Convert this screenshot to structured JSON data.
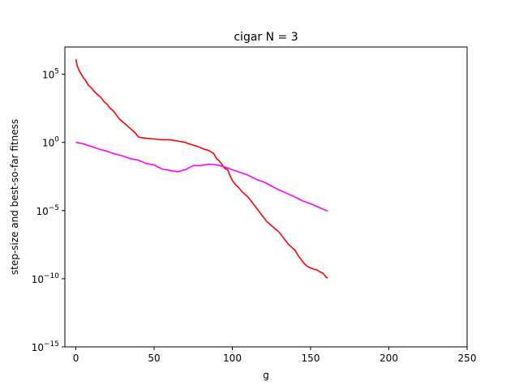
{
  "chart_data": {
    "type": "line",
    "title": "cigar N = 3",
    "xlabel": "g",
    "ylabel": "step-size and best-so-far fitness",
    "xlim": [
      -7,
      250
    ],
    "ylim_log10": [
      -15,
      7
    ],
    "y_scale": "log",
    "grid": false,
    "legend": "none",
    "x_ticks": [
      0,
      50,
      100,
      150,
      200,
      250
    ],
    "x_tick_labels": [
      "0",
      "50",
      "100",
      "150",
      "200",
      "250"
    ],
    "y_ticks_log10": [
      -15,
      -10,
      -5,
      0,
      5
    ],
    "y_tick_labels": [
      "10",
      "10",
      "10",
      "10",
      "10"
    ],
    "y_tick_exponents": [
      "−15",
      "−10",
      "−5",
      "0",
      "5"
    ],
    "series": [
      {
        "color": "#ff0000",
        "x": [
          0,
          1,
          2,
          3,
          4,
          5,
          6,
          7,
          8,
          9,
          10,
          12,
          14,
          16,
          18,
          20,
          22,
          24,
          26,
          28,
          30,
          32,
          34,
          36,
          38,
          40,
          42,
          45,
          50,
          55,
          60,
          65,
          70,
          72,
          75,
          78,
          80,
          82,
          85,
          88,
          90,
          92,
          95,
          97,
          98,
          100,
          102,
          104,
          106,
          108,
          110,
          112,
          114,
          116,
          118,
          120,
          122,
          124,
          126,
          128,
          130,
          132,
          134,
          136,
          138,
          140,
          142,
          144,
          146,
          148,
          150,
          152,
          154,
          156,
          158,
          160,
          161
        ],
        "log10_y": [
          6.1,
          5.6,
          5.3,
          5.1,
          4.9,
          4.7,
          4.6,
          4.4,
          4.2,
          4.1,
          4.0,
          3.7,
          3.5,
          3.3,
          3.0,
          2.8,
          2.5,
          2.3,
          2.0,
          1.7,
          1.5,
          1.3,
          1.1,
          0.9,
          0.7,
          0.4,
          0.35,
          0.3,
          0.25,
          0.2,
          0.2,
          0.1,
          0.0,
          -0.1,
          -0.2,
          -0.3,
          -0.4,
          -0.5,
          -0.6,
          -0.8,
          -1.2,
          -1.4,
          -1.9,
          -2.0,
          -2.3,
          -2.8,
          -3.1,
          -3.3,
          -3.6,
          -3.8,
          -4.0,
          -4.3,
          -4.6,
          -4.9,
          -5.2,
          -5.5,
          -5.8,
          -6.0,
          -6.2,
          -6.4,
          -6.6,
          -6.9,
          -7.2,
          -7.5,
          -7.7,
          -7.9,
          -8.3,
          -8.6,
          -8.9,
          -9.1,
          -9.2,
          -9.3,
          -9.35,
          -9.5,
          -9.6,
          -9.9,
          -9.95
        ]
      },
      {
        "color": "#ff00ff",
        "x": [
          0,
          3,
          6,
          10,
          15,
          20,
          25,
          30,
          35,
          40,
          45,
          50,
          55,
          60,
          65,
          70,
          75,
          80,
          85,
          90,
          95,
          100,
          105,
          110,
          115,
          120,
          125,
          130,
          135,
          140,
          145,
          150,
          155,
          160,
          161
        ],
        "log10_y": [
          0.0,
          -0.05,
          -0.15,
          -0.3,
          -0.5,
          -0.65,
          -0.85,
          -1.0,
          -1.2,
          -1.3,
          -1.55,
          -1.65,
          -1.95,
          -2.05,
          -2.15,
          -2.0,
          -1.7,
          -1.7,
          -1.6,
          -1.65,
          -1.8,
          -2.0,
          -2.2,
          -2.4,
          -2.7,
          -2.9,
          -3.2,
          -3.5,
          -3.75,
          -4.0,
          -4.3,
          -4.5,
          -4.75,
          -5.0,
          -5.05
        ]
      }
    ]
  }
}
